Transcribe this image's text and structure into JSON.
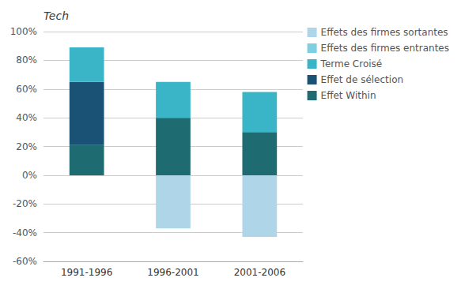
{
  "chart_data": {
    "type": "bar",
    "title": "Tech",
    "categories": [
      "1991-1996",
      "1996-2001",
      "2001-2006"
    ],
    "series": [
      {
        "name": "Effet Within",
        "color": "#1e6b72",
        "values": [
          21,
          40,
          30
        ]
      },
      {
        "name": "Effet de sélection",
        "color": "#1a5276",
        "values": [
          44,
          0,
          0
        ]
      },
      {
        "name": "Terme Croisé",
        "color": "#3ab5c8",
        "values": [
          24,
          25,
          28
        ]
      },
      {
        "name": "Effets des firmes entrantes",
        "color": "#7ecfe0",
        "values": [
          0,
          0,
          0
        ]
      },
      {
        "name": "Effets des firmes sortantes",
        "color": "#aed6e8",
        "values": [
          0,
          -37,
          -43
        ]
      }
    ],
    "stacked": true,
    "ylim": [
      -60,
      100
    ],
    "yticks": [
      {
        "value": -60,
        "label": "-60%"
      },
      {
        "value": -40,
        "label": "-40%"
      },
      {
        "value": -20,
        "label": "-20%"
      },
      {
        "value": 0,
        "label": "0%"
      },
      {
        "value": 20,
        "label": "20%"
      },
      {
        "value": 40,
        "label": "40%"
      },
      {
        "value": 60,
        "label": "60%"
      },
      {
        "value": 80,
        "label": "80%"
      },
      {
        "value": 100,
        "label": "100%"
      }
    ],
    "grid": true,
    "legend": "right"
  }
}
